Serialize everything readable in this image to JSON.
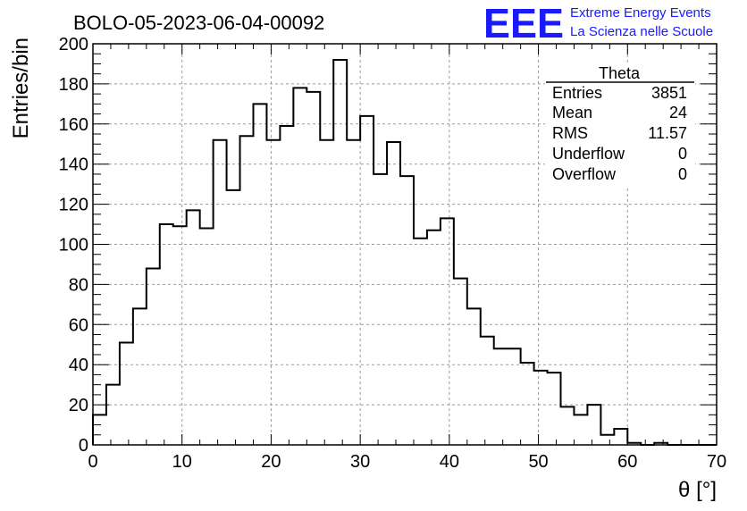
{
  "chart_data": {
    "type": "bar",
    "title": "BOLO-05-2023-06-04-00092",
    "xlabel": "θ [°]",
    "ylabel": "Entries/bin",
    "xlim": [
      0,
      70
    ],
    "ylim": [
      0,
      200
    ],
    "grid": true,
    "bin_width": 1.5,
    "x_ticks": [
      "0",
      "10",
      "20",
      "30",
      "40",
      "50",
      "60",
      "70"
    ],
    "y_ticks": [
      "0",
      "20",
      "40",
      "60",
      "80",
      "100",
      "120",
      "140",
      "160",
      "180",
      "200"
    ],
    "values": [
      15,
      30,
      51,
      68,
      88,
      110,
      109,
      117,
      108,
      152,
      127,
      154,
      170,
      152,
      159,
      178,
      176,
      152,
      192,
      152,
      164,
      135,
      151,
      134,
      103,
      107,
      113,
      83,
      68,
      54,
      48,
      48,
      41,
      37,
      36,
      19,
      15,
      20,
      5,
      8,
      1,
      0,
      1,
      0,
      0,
      0,
      0
    ],
    "stats_box": {
      "title": "Theta",
      "rows": [
        {
          "label": "Entries",
          "value": "3851"
        },
        {
          "label": "Mean",
          "value": "24"
        },
        {
          "label": "RMS",
          "value": "11.57"
        },
        {
          "label": "Underflow",
          "value": "0"
        },
        {
          "label": "Overflow",
          "value": "0"
        }
      ],
      "placement": "top-right"
    }
  },
  "logo": {
    "mark": "EEE",
    "line1": "Extreme Energy Events",
    "line2": "La Scienza nelle Scuole",
    "color": "#1a1aff"
  }
}
